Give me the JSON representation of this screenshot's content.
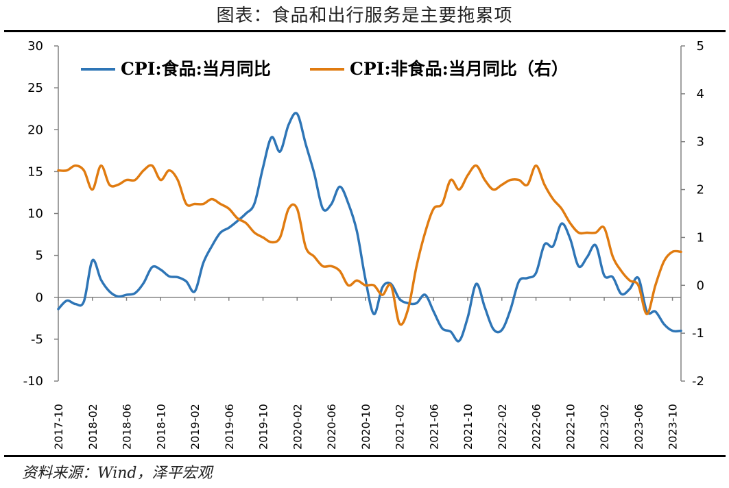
{
  "header": {
    "title": "图表：食品和出行服务是主要拖累项"
  },
  "footer": {
    "source": "资料来源：Wind，泽平宏观"
  },
  "chart_data": {
    "type": "line",
    "x": [
      "2017-10",
      "2017-11",
      "2017-12",
      "2018-01",
      "2018-02",
      "2018-03",
      "2018-04",
      "2018-05",
      "2018-06",
      "2018-07",
      "2018-08",
      "2018-09",
      "2018-10",
      "2018-11",
      "2018-12",
      "2019-01",
      "2019-02",
      "2019-03",
      "2019-04",
      "2019-05",
      "2019-06",
      "2019-07",
      "2019-08",
      "2019-09",
      "2019-10",
      "2019-11",
      "2019-12",
      "2020-01",
      "2020-02",
      "2020-03",
      "2020-04",
      "2020-05",
      "2020-06",
      "2020-07",
      "2020-08",
      "2020-09",
      "2020-10",
      "2020-11",
      "2020-12",
      "2021-01",
      "2021-02",
      "2021-03",
      "2021-04",
      "2021-05",
      "2021-06",
      "2021-07",
      "2021-08",
      "2021-09",
      "2021-10",
      "2021-11",
      "2021-12",
      "2022-01",
      "2022-02",
      "2022-03",
      "2022-04",
      "2022-05",
      "2022-06",
      "2022-07",
      "2022-08",
      "2022-09",
      "2022-10",
      "2022-11",
      "2022-12",
      "2023-01",
      "2023-02",
      "2023-03",
      "2023-04",
      "2023-05",
      "2023-06",
      "2023-07",
      "2023-08",
      "2023-09",
      "2023-10",
      "2023-11"
    ],
    "xtick_labels": [
      "2017-10",
      "2018-02",
      "2018-06",
      "2018-10",
      "2019-02",
      "2019-06",
      "2019-10",
      "2020-02",
      "2020-06",
      "2020-10",
      "2021-02",
      "2021-06",
      "2021-10",
      "2022-02",
      "2022-06",
      "2022-10",
      "2023-02",
      "2023-06",
      "2023-10"
    ],
    "series": [
      {
        "name": "CPI:食品:当月同比",
        "color": "#2E75B6",
        "axis": "left",
        "values": [
          -1.4,
          -0.4,
          -0.8,
          -0.5,
          4.4,
          2.1,
          0.7,
          0.1,
          0.3,
          0.5,
          1.7,
          3.6,
          3.3,
          2.5,
          2.4,
          1.9,
          0.7,
          4.1,
          6.1,
          7.7,
          8.3,
          9.1,
          10.0,
          11.2,
          15.5,
          19.1,
          17.4,
          20.6,
          21.9,
          18.3,
          14.8,
          10.6,
          11.1,
          13.2,
          11.2,
          7.9,
          2.2,
          -2.0,
          1.2,
          1.6,
          -0.2,
          -0.7,
          -0.7,
          0.3,
          -1.7,
          -3.7,
          -4.1,
          -5.2,
          -2.4,
          1.6,
          -1.2,
          -3.8,
          -3.9,
          -1.5,
          1.9,
          2.3,
          2.9,
          6.3,
          6.1,
          8.8,
          7.0,
          3.7,
          4.8,
          6.2,
          2.6,
          2.4,
          0.4,
          1.0,
          2.3,
          -1.7,
          -1.7,
          -3.2,
          -4.0,
          -4.0
        ]
      },
      {
        "name": "CPI:非食品:当月同比（右）",
        "color": "#E07B10",
        "axis": "right",
        "values": [
          2.4,
          2.4,
          2.5,
          2.4,
          2.0,
          2.5,
          2.1,
          2.1,
          2.2,
          2.2,
          2.4,
          2.5,
          2.2,
          2.4,
          2.2,
          1.7,
          1.7,
          1.7,
          1.8,
          1.7,
          1.6,
          1.4,
          1.3,
          1.1,
          1.0,
          0.9,
          1.0,
          1.6,
          1.6,
          0.8,
          0.6,
          0.4,
          0.4,
          0.3,
          0.0,
          0.1,
          0.0,
          0.0,
          -0.2,
          0.0,
          -0.8,
          -0.5,
          0.4,
          1.1,
          1.6,
          1.7,
          2.2,
          2.0,
          2.3,
          2.5,
          2.2,
          2.0,
          2.1,
          2.2,
          2.2,
          2.1,
          2.5,
          2.1,
          1.8,
          1.6,
          1.3,
          1.1,
          1.1,
          1.1,
          1.2,
          0.6,
          0.3,
          0.1,
          0.0,
          -0.6,
          0.0,
          0.5,
          0.7,
          0.7
        ]
      }
    ],
    "y_left": {
      "ylim": [
        -10,
        30
      ],
      "ticks": [
        "-10",
        "-5",
        "0",
        "5",
        "10",
        "15",
        "20",
        "25",
        "30"
      ]
    },
    "y_right": {
      "ylim": [
        -2,
        5
      ],
      "ticks": [
        "-2",
        "-1",
        "0",
        "1",
        "2",
        "3",
        "4",
        "5"
      ]
    },
    "legend": {
      "position": "top-left",
      "entries": [
        "CPI:食品:当月同比",
        "CPI:非食品:当月同比（右）"
      ]
    },
    "grid": false
  }
}
